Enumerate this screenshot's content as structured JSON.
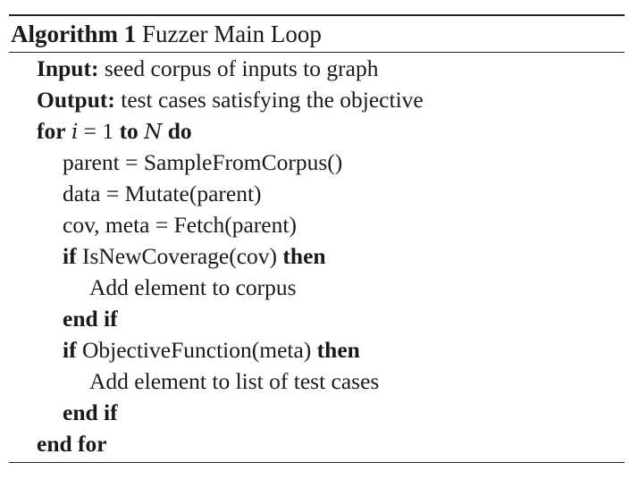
{
  "caption": {
    "label": "Algorithm 1",
    "title": "Fuzzer Main Loop"
  },
  "lines": {
    "input_kw": "Input:",
    "input_text": "seed corpus of inputs to graph",
    "output_kw": "Output:",
    "output_text": "test cases satisfying the objective",
    "for_kw": "for",
    "for_var": "i",
    "for_eq": " = 1 ",
    "for_to": "to",
    "for_n": "N",
    "for_do": "do",
    "l_parent": "parent = SampleFromCorpus()",
    "l_data": "data = Mutate(parent)",
    "l_cov": "cov, meta = Fetch(parent)",
    "if1_kw": "if",
    "if1_cond": "IsNewCoverage(cov)",
    "if1_then": "then",
    "add_corpus": "Add element to corpus",
    "endif1": "end if",
    "if2_kw": "if",
    "if2_cond": "ObjectiveFunction(meta)",
    "if2_then": "then",
    "add_tests": "Add element to list of test cases",
    "endif2": "end if",
    "endfor": "end for"
  }
}
